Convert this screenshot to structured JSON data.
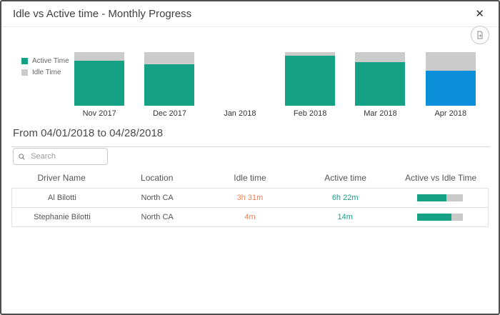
{
  "modal": {
    "title": "Idle vs Active time - Monthly Progress",
    "close_glyph": "✕"
  },
  "chart_data": {
    "type": "bar",
    "stacked": true,
    "categories": [
      "Nov 2017",
      "Dec 2017",
      "Jan 2018",
      "Feb 2018",
      "Mar 2018",
      "Apr 2018"
    ],
    "series": [
      {
        "name": "Active Time",
        "values_pct": [
          84,
          78,
          0,
          93,
          81,
          66
        ]
      },
      {
        "name": "Idle Time",
        "values_pct": [
          16,
          22,
          0,
          7,
          19,
          34
        ]
      }
    ],
    "highlighted_category": "Apr 2018",
    "legend_position": "left",
    "ylim": [
      0,
      100
    ],
    "colors": {
      "active": "#15a284",
      "idle": "#cbcbcb",
      "highlight_active": "#0d90db"
    }
  },
  "legend": {
    "items": [
      {
        "label": "Active Time",
        "color": "#15a284"
      },
      {
        "label": "Idle Time",
        "color": "#cbcbcb"
      }
    ]
  },
  "date_range": "From 04/01/2018 to 04/28/2018",
  "search": {
    "placeholder": "Search"
  },
  "table": {
    "columns": [
      "Driver Name",
      "Location",
      "Idle time",
      "Active time",
      "Active vs Idle Time"
    ],
    "rows": [
      {
        "driver": "Al Bilotti",
        "location": "North CA",
        "idle": "3h 31m",
        "active": "6h 22m",
        "active_pct": 64
      },
      {
        "driver": "Stephanie Bilotti",
        "location": "North CA",
        "idle": "4m",
        "active": "14m",
        "active_pct": 75
      }
    ],
    "value_colors": {
      "idle": "#e8825e",
      "active": "#14a28a"
    },
    "progress_colors": {
      "fill": "#15a284",
      "track": "#c9c9c9"
    }
  }
}
